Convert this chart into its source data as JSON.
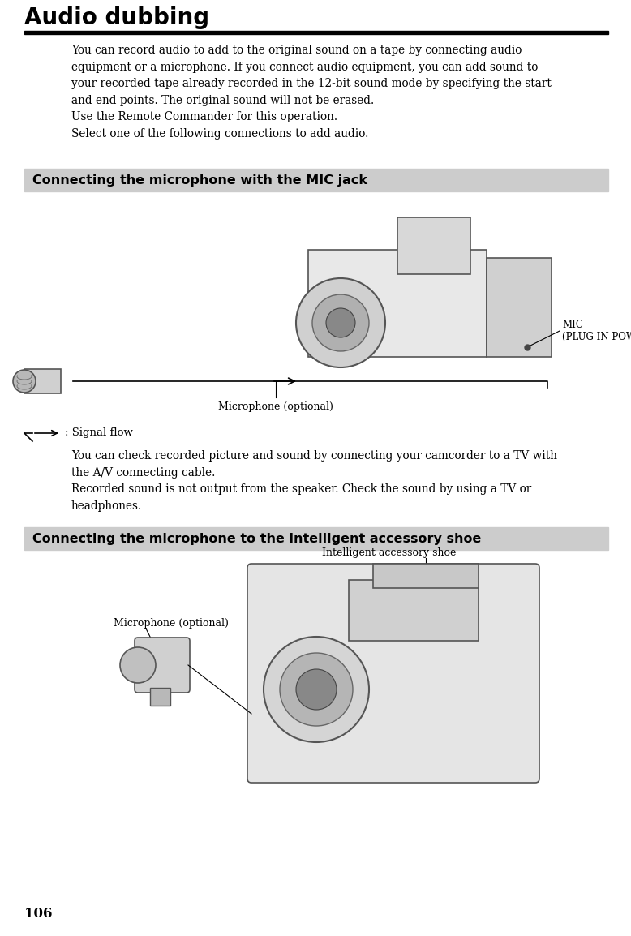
{
  "bg_color": "#ffffff",
  "title": "Audio dubbing",
  "title_fontsize": 20,
  "page_number": "106",
  "section_bg": "#cccccc",
  "section1_label": "Connecting the microphone with the MIC jack",
  "section2_label": "Connecting the microphone to the intelligent accessory shoe",
  "section_fontsize": 11.5,
  "body_fontsize": 9.8,
  "body_text_1": "You can record audio to add to the original sound on a tape by connecting audio\nequipment or a microphone. If you connect audio equipment, you can add sound to\nyour recorded tape already recorded in the 12-bit sound mode by specifying the start\nand end points. The original sound will not be erased.\nUse the Remote Commander for this operation.\nSelect one of the following connections to add audio.",
  "body_text_2": "You can check recorded picture and sound by connecting your camcorder to a TV with\nthe A/V connecting cable.\nRecorded sound is not output from the speaker. Check the sound by using a TV or\nheadphones.",
  "mic_label_1": "Microphone (optional)",
  "mic_jack_label": "MIC\n(PLUG IN POWER)",
  "signal_flow_text": ": Signal flow",
  "mic_label_2": "Microphone (optional)",
  "accessory_label": "Intelligent accessory shoe"
}
